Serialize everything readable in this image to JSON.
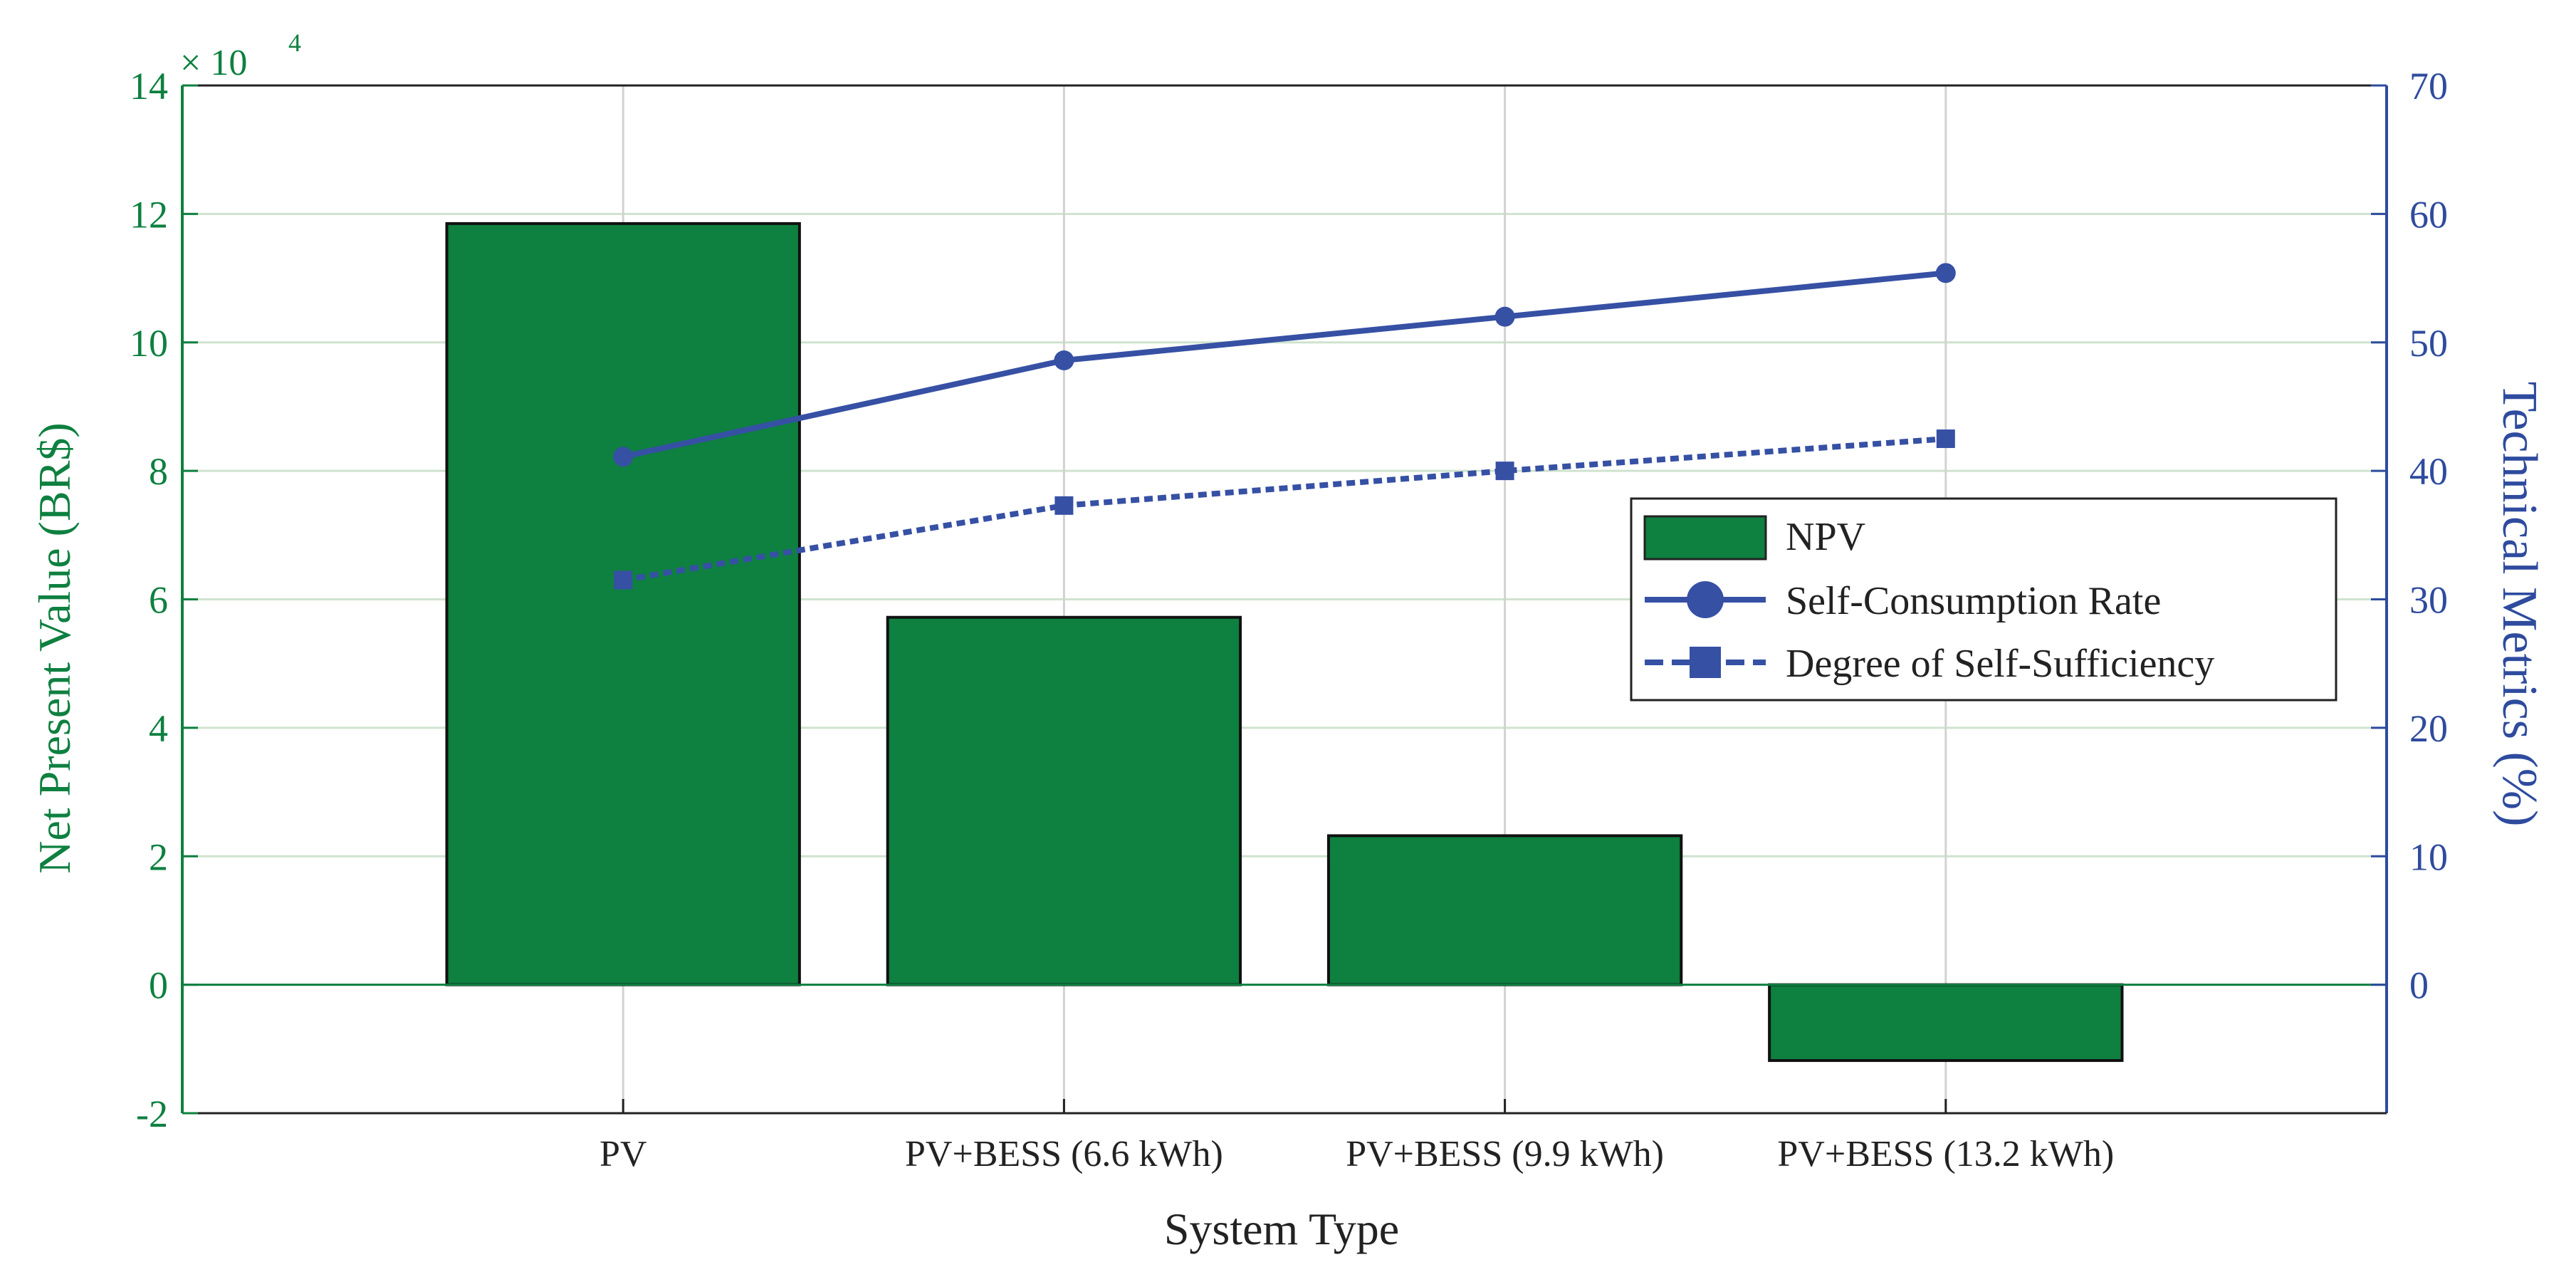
{
  "chart_data": {
    "type": "bar",
    "xlabel": "System Type",
    "categories": [
      "PV",
      "PV+BESS (6.6 kWh)",
      "PV+BESS (9.9 kWh)",
      "PV+BESS (13.2 kWh)"
    ],
    "left_axis": {
      "label": "Net Present Value (BR$)",
      "exponent_label": "× 10",
      "exponent_power": "4",
      "ylim": [
        -2,
        14
      ],
      "ticks": [
        -2,
        0,
        2,
        4,
        6,
        8,
        10,
        12,
        14
      ],
      "tick_labels": [
        "-2",
        "0",
        "2",
        "4",
        "6",
        "8",
        "10",
        "12",
        "14"
      ],
      "color": "#0e8040"
    },
    "right_axis": {
      "label": "Technical Metrics (%)",
      "ylim": [
        -10,
        70
      ],
      "ticks": [
        0,
        10,
        20,
        30,
        40,
        50,
        60,
        70
      ],
      "tick_labels": [
        "0",
        "10",
        "20",
        "30",
        "40",
        "50",
        "60",
        "70"
      ],
      "color": "#2e4b9e"
    },
    "series": [
      {
        "name": "NPV",
        "kind": "bar",
        "axis": "left",
        "color": "#0e8040",
        "values": [
          11.85,
          5.72,
          2.32,
          -1.18
        ]
      },
      {
        "name": "Self-Consumption Rate",
        "kind": "line",
        "axis": "right",
        "style": "solid",
        "marker": "circle",
        "color": "#3650a4",
        "values": [
          41.1,
          48.6,
          52.0,
          55.4
        ]
      },
      {
        "name": "Degree of Self-Sufficiency",
        "kind": "line",
        "axis": "right",
        "style": "dotted",
        "marker": "square",
        "color": "#3650a4",
        "values": [
          31.5,
          37.3,
          40.0,
          42.5
        ]
      }
    ],
    "grid": true,
    "legend": {
      "placement": "right-middle",
      "entries": [
        "NPV",
        "Self-Consumption Rate",
        "Degree of Self-Sufficiency"
      ]
    }
  }
}
